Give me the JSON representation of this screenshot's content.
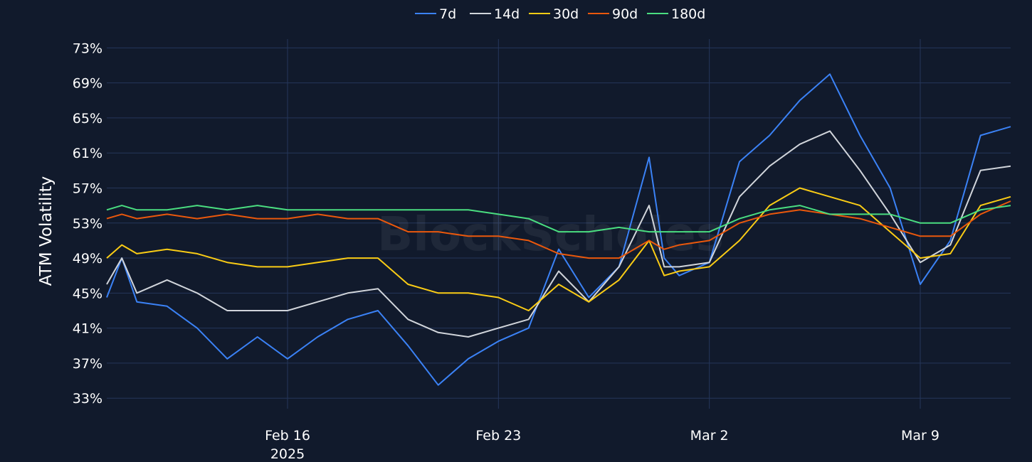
{
  "chart_data": {
    "type": "line",
    "ylabel": "ATM Volatility",
    "y_tick_labels": [
      "33%",
      "37%",
      "41%",
      "45%",
      "49%",
      "53%",
      "57%",
      "61%",
      "65%",
      "69%",
      "73%"
    ],
    "ylim": [
      31.8,
      74.0
    ],
    "xlim": [
      "2025-02-10",
      "2025-03-12"
    ],
    "x_ticks": [
      {
        "date": "2025-02-16",
        "label": "Feb 16",
        "sublabel": "2025"
      },
      {
        "date": "2025-02-23",
        "label": "Feb 23",
        "sublabel": ""
      },
      {
        "date": "2025-03-02",
        "label": "Mar 2",
        "sublabel": ""
      },
      {
        "date": "2025-03-09",
        "label": "Mar 9",
        "sublabel": ""
      }
    ],
    "grid": true,
    "legend_position": "top-center",
    "watermark": "BlockScholes",
    "series": [
      {
        "name": "7d",
        "color": "#3b82f6",
        "x": [
          "2025-02-10",
          "2025-02-10T12:00",
          "2025-02-11",
          "2025-02-12",
          "2025-02-13",
          "2025-02-14",
          "2025-02-15",
          "2025-02-16",
          "2025-02-17",
          "2025-02-18",
          "2025-02-19",
          "2025-02-20",
          "2025-02-21",
          "2025-02-22",
          "2025-02-23",
          "2025-02-24",
          "2025-02-25",
          "2025-02-26",
          "2025-02-27",
          "2025-02-28",
          "2025-02-28T12:00",
          "2025-03-01",
          "2025-03-02",
          "2025-03-03",
          "2025-03-04",
          "2025-03-05",
          "2025-03-06",
          "2025-03-07",
          "2025-03-08",
          "2025-03-09",
          "2025-03-10",
          "2025-03-11",
          "2025-03-12"
        ],
        "values": [
          44.5,
          49.0,
          44.0,
          43.5,
          41.0,
          37.5,
          40.0,
          37.5,
          40.0,
          42.0,
          43.0,
          39.0,
          34.5,
          37.5,
          39.5,
          41.0,
          50.0,
          44.5,
          48.0,
          60.5,
          49.0,
          47.0,
          48.5,
          60.0,
          63.0,
          67.0,
          70.0,
          63.0,
          57.0,
          46.0,
          51.0,
          63.0,
          64.0
        ]
      },
      {
        "name": "14d",
        "color": "#d1d5db",
        "x": [
          "2025-02-10",
          "2025-02-10T12:00",
          "2025-02-11",
          "2025-02-12",
          "2025-02-13",
          "2025-02-14",
          "2025-02-15",
          "2025-02-16",
          "2025-02-17",
          "2025-02-18",
          "2025-02-19",
          "2025-02-20",
          "2025-02-21",
          "2025-02-22",
          "2025-02-23",
          "2025-02-24",
          "2025-02-25",
          "2025-02-26",
          "2025-02-27",
          "2025-02-28",
          "2025-02-28T12:00",
          "2025-03-01",
          "2025-03-02",
          "2025-03-03",
          "2025-03-04",
          "2025-03-05",
          "2025-03-06",
          "2025-03-07",
          "2025-03-08",
          "2025-03-09",
          "2025-03-10",
          "2025-03-11",
          "2025-03-12"
        ],
        "values": [
          46.0,
          49.0,
          45.0,
          46.5,
          45.0,
          43.0,
          43.0,
          43.0,
          44.0,
          45.0,
          45.5,
          42.0,
          40.5,
          40.0,
          41.0,
          42.0,
          47.5,
          44.0,
          48.0,
          55.0,
          48.0,
          48.0,
          48.5,
          56.0,
          59.5,
          62.0,
          63.5,
          59.0,
          54.0,
          48.5,
          50.5,
          59.0,
          59.5
        ]
      },
      {
        "name": "30d",
        "color": "#facc15",
        "x": [
          "2025-02-10",
          "2025-02-10T12:00",
          "2025-02-11",
          "2025-02-12",
          "2025-02-13",
          "2025-02-14",
          "2025-02-15",
          "2025-02-16",
          "2025-02-17",
          "2025-02-18",
          "2025-02-19",
          "2025-02-20",
          "2025-02-21",
          "2025-02-22",
          "2025-02-23",
          "2025-02-24",
          "2025-02-25",
          "2025-02-26",
          "2025-02-27",
          "2025-02-28",
          "2025-02-28T12:00",
          "2025-03-01",
          "2025-03-02",
          "2025-03-03",
          "2025-03-04",
          "2025-03-05",
          "2025-03-06",
          "2025-03-07",
          "2025-03-08",
          "2025-03-09",
          "2025-03-10",
          "2025-03-11",
          "2025-03-12"
        ],
        "values": [
          49.0,
          50.5,
          49.5,
          50.0,
          49.5,
          48.5,
          48.0,
          48.0,
          48.5,
          49.0,
          49.0,
          46.0,
          45.0,
          45.0,
          44.5,
          43.0,
          46.0,
          44.0,
          46.5,
          51.0,
          47.0,
          47.5,
          48.0,
          51.0,
          55.0,
          57.0,
          56.0,
          55.0,
          52.0,
          49.0,
          49.5,
          55.0,
          56.0
        ]
      },
      {
        "name": "90d",
        "color": "#ea580c",
        "x": [
          "2025-02-10",
          "2025-02-10T12:00",
          "2025-02-11",
          "2025-02-12",
          "2025-02-13",
          "2025-02-14",
          "2025-02-15",
          "2025-02-16",
          "2025-02-17",
          "2025-02-18",
          "2025-02-19",
          "2025-02-20",
          "2025-02-21",
          "2025-02-22",
          "2025-02-23",
          "2025-02-24",
          "2025-02-25",
          "2025-02-26",
          "2025-02-27",
          "2025-02-28",
          "2025-02-28T12:00",
          "2025-03-01",
          "2025-03-02",
          "2025-03-03",
          "2025-03-04",
          "2025-03-05",
          "2025-03-06",
          "2025-03-07",
          "2025-03-08",
          "2025-03-09",
          "2025-03-10",
          "2025-03-11",
          "2025-03-12"
        ],
        "values": [
          53.5,
          54.0,
          53.5,
          54.0,
          53.5,
          54.0,
          53.5,
          53.5,
          54.0,
          53.5,
          53.5,
          52.0,
          52.0,
          51.5,
          51.5,
          51.0,
          49.5,
          49.0,
          49.0,
          51.0,
          50.0,
          50.5,
          51.0,
          53.0,
          54.0,
          54.5,
          54.0,
          53.5,
          52.5,
          51.5,
          51.5,
          54.0,
          55.5
        ]
      },
      {
        "name": "180d",
        "color": "#4ade80",
        "x": [
          "2025-02-10",
          "2025-02-10T12:00",
          "2025-02-11",
          "2025-02-12",
          "2025-02-13",
          "2025-02-14",
          "2025-02-15",
          "2025-02-16",
          "2025-02-17",
          "2025-02-18",
          "2025-02-19",
          "2025-02-20",
          "2025-02-21",
          "2025-02-22",
          "2025-02-23",
          "2025-02-24",
          "2025-02-25",
          "2025-02-26",
          "2025-02-27",
          "2025-02-28",
          "2025-02-28T12:00",
          "2025-03-01",
          "2025-03-02",
          "2025-03-03",
          "2025-03-04",
          "2025-03-05",
          "2025-03-06",
          "2025-03-07",
          "2025-03-08",
          "2025-03-09",
          "2025-03-10",
          "2025-03-11",
          "2025-03-12"
        ],
        "values": [
          54.5,
          55.0,
          54.5,
          54.5,
          55.0,
          54.5,
          55.0,
          54.5,
          54.5,
          54.5,
          54.5,
          54.5,
          54.5,
          54.5,
          54.0,
          53.5,
          52.0,
          52.0,
          52.5,
          52.0,
          52.0,
          52.0,
          52.0,
          53.5,
          54.5,
          55.0,
          54.0,
          54.0,
          54.0,
          53.0,
          53.0,
          54.5,
          55.0
        ]
      }
    ]
  }
}
